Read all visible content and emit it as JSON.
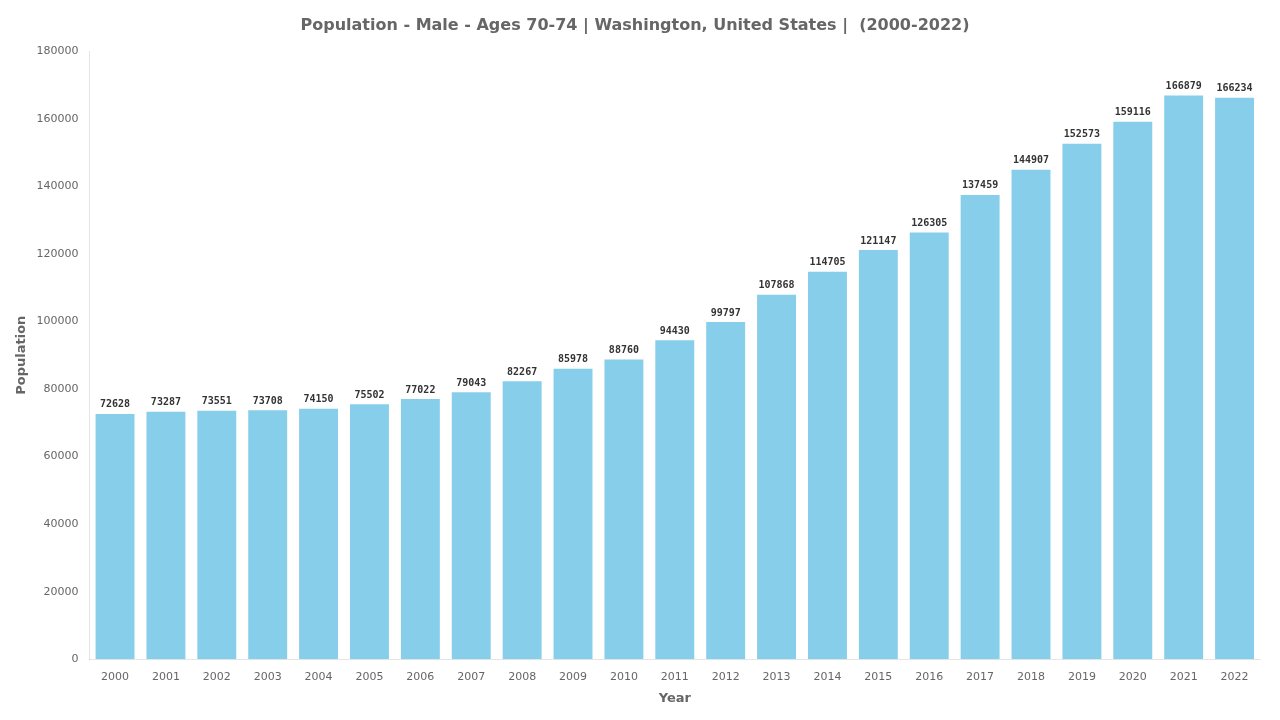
{
  "chart_data": {
    "type": "bar",
    "title": "Population - Male - Ages 70-74 | Washington, United States |  (2000-2022)",
    "xlabel": "Year",
    "ylabel": "Population",
    "categories": [
      "2000",
      "2001",
      "2002",
      "2003",
      "2004",
      "2005",
      "2006",
      "2007",
      "2008",
      "2009",
      "2010",
      "2011",
      "2012",
      "2013",
      "2014",
      "2015",
      "2016",
      "2017",
      "2018",
      "2019",
      "2020",
      "2021",
      "2022"
    ],
    "values": [
      72628,
      73287,
      73551,
      73708,
      74150,
      75502,
      77022,
      79043,
      82267,
      85978,
      88760,
      94430,
      99797,
      107868,
      114705,
      121147,
      126305,
      137459,
      144907,
      152573,
      159116,
      166879,
      166234
    ],
    "color": "#87CEEB",
    "ylim": [
      0,
      180000
    ],
    "yticks": [
      0,
      20000,
      40000,
      60000,
      80000,
      100000,
      120000,
      140000,
      160000,
      180000
    ],
    "grid": false,
    "data_labels": true
  }
}
